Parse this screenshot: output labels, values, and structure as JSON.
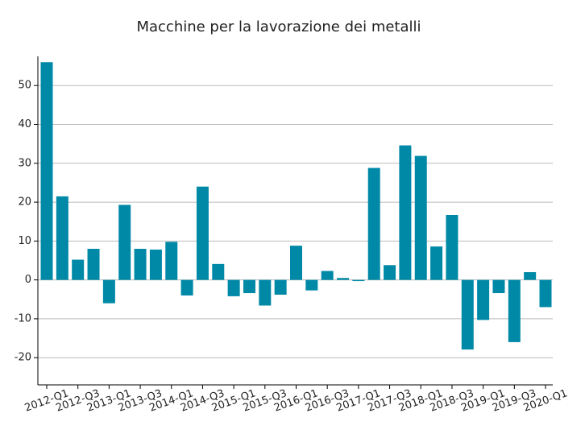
{
  "chart_data": {
    "type": "bar",
    "title": "Macchine per la lavorazione dei metalli",
    "categories": [
      "2012-Q1",
      null,
      "2012-Q3",
      null,
      "2013-Q1",
      null,
      "2013-Q3",
      null,
      "2014-Q1",
      null,
      "2014-Q3",
      null,
      "2015-Q1",
      null,
      "2015-Q3",
      null,
      "2016-Q1",
      null,
      "2016-Q3",
      null,
      "2017-Q1",
      null,
      "2017-Q3",
      null,
      "2018-Q1",
      null,
      "2018-Q3",
      null,
      "2019-Q1",
      null,
      "2019-Q3",
      null,
      "2020-Q1"
    ],
    "values": [
      56,
      21.5,
      5.2,
      8,
      -6,
      19.3,
      8,
      7.8,
      9.8,
      -4,
      24,
      4.1,
      -4.2,
      -3.4,
      -6.6,
      -3.8,
      8.8,
      -2.7,
      2.3,
      0.5,
      -0.3,
      28.8,
      3.8,
      34.6,
      31.9,
      8.6,
      16.7,
      -17.9,
      -10.3,
      -3.4,
      -16,
      2,
      -7
    ],
    "color": "#0089a7",
    "ylim": [
      -27,
      57.5
    ],
    "yticks": [
      -20,
      -10,
      0,
      10,
      20,
      30,
      40,
      50
    ],
    "grid": true
  }
}
